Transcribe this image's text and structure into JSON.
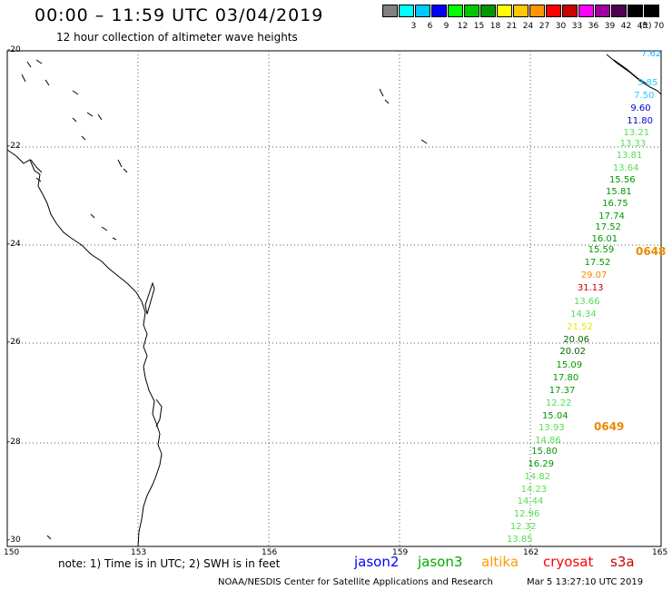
{
  "header": {
    "title": "00:00 – 11:59 UTC 03/04/2019",
    "subtitle": "12 hour collection of altimeter wave heights"
  },
  "legend": {
    "unit": "(ft)",
    "items": [
      {
        "color": "#808080",
        "label": ""
      },
      {
        "color": "#00ffff",
        "label": "3"
      },
      {
        "color": "#00c8ff",
        "label": "6"
      },
      {
        "color": "#0000ff",
        "label": "9"
      },
      {
        "color": "#00ff00",
        "label": "12"
      },
      {
        "color": "#00c800",
        "label": "15"
      },
      {
        "color": "#009600",
        "label": "18"
      },
      {
        "color": "#ffff00",
        "label": "21"
      },
      {
        "color": "#ffc800",
        "label": "24"
      },
      {
        "color": "#ff9600",
        "label": "27"
      },
      {
        "color": "#ff0000",
        "label": "30"
      },
      {
        "color": "#c80000",
        "label": "33"
      },
      {
        "color": "#ff00ff",
        "label": "36"
      },
      {
        "color": "#a000a0",
        "label": "39"
      },
      {
        "color": "#500050",
        "label": "42"
      },
      {
        "color": "#000000",
        "label": "45"
      },
      {
        "color": "#000000",
        "label": "70"
      }
    ]
  },
  "map": {
    "lat_labels": [
      "-20",
      "-22",
      "-24",
      "-26",
      "-28",
      "-30"
    ],
    "lon_labels": [
      "150",
      "153",
      "156",
      "159",
      "162",
      "165"
    ]
  },
  "observations": [
    {
      "value": "7.62",
      "color": "#22aaff"
    },
    {
      "value": "3.85",
      "color": "#22ccff"
    },
    {
      "value": "7.50",
      "color": "#22ccff"
    },
    {
      "value": "9.60",
      "color": "#0000cc"
    },
    {
      "value": "11.80",
      "color": "#0000cc"
    },
    {
      "value": "13.21",
      "color": "#55dd55"
    },
    {
      "value": "13.33",
      "color": "#55dd55"
    },
    {
      "value": "13.81",
      "color": "#55dd55"
    },
    {
      "value": "13.64",
      "color": "#55dd55"
    },
    {
      "value": "15.56",
      "color": "#009900"
    },
    {
      "value": "15.81",
      "color": "#009900"
    },
    {
      "value": "16.75",
      "color": "#009900"
    },
    {
      "value": "17.74",
      "color": "#009900"
    },
    {
      "value": "17.52",
      "color": "#009900"
    },
    {
      "value": "16.01",
      "color": "#009900"
    },
    {
      "value": "15.59",
      "color": "#009900"
    },
    {
      "value": "17.52",
      "color": "#009900"
    },
    {
      "value": "29.07",
      "color": "#ff8800"
    },
    {
      "value": "31.13",
      "color": "#cc0000"
    },
    {
      "value": "13.66",
      "color": "#55dd55"
    },
    {
      "value": "14.34",
      "color": "#55dd55"
    },
    {
      "value": "21.52",
      "color": "#e8e800"
    },
    {
      "value": "20.06",
      "color": "#006600"
    },
    {
      "value": "20.02",
      "color": "#006600"
    },
    {
      "value": "15.09",
      "color": "#009900"
    },
    {
      "value": "17.80",
      "color": "#009900"
    },
    {
      "value": "17.37",
      "color": "#009900"
    },
    {
      "value": "12.22",
      "color": "#55dd55"
    },
    {
      "value": "15.04",
      "color": "#009900"
    },
    {
      "value": "13.93",
      "color": "#55dd55"
    },
    {
      "value": "14.86",
      "color": "#55dd55"
    },
    {
      "value": "15.80",
      "color": "#009900"
    },
    {
      "value": "16.29",
      "color": "#009900"
    },
    {
      "value": "14.82",
      "color": "#55dd55"
    },
    {
      "value": "14.23",
      "color": "#55dd55"
    },
    {
      "value": "14.44",
      "color": "#55dd55"
    },
    {
      "value": "12.96",
      "color": "#55dd55"
    },
    {
      "value": "12.32",
      "color": "#55dd55"
    },
    {
      "value": "13.85",
      "color": "#55dd55"
    }
  ],
  "pass_times": [
    "0648",
    "0649"
  ],
  "footer": {
    "note": "note: 1) Time is in UTC; 2) SWH is in feet",
    "satellites": [
      {
        "name": "jason2",
        "color": "#0000ff"
      },
      {
        "name": "jason3",
        "color": "#00aa00"
      },
      {
        "name": "altika",
        "color": "#ff9900"
      },
      {
        "name": "cryosat",
        "color": "#ff0000"
      },
      {
        "name": "s3a",
        "color": "#cc0000"
      }
    ],
    "credit": "NOAA/NESDIS Center for Satellite Applications and Research",
    "timestamp": "Mar  5 13:27:10 UTC 2019"
  }
}
